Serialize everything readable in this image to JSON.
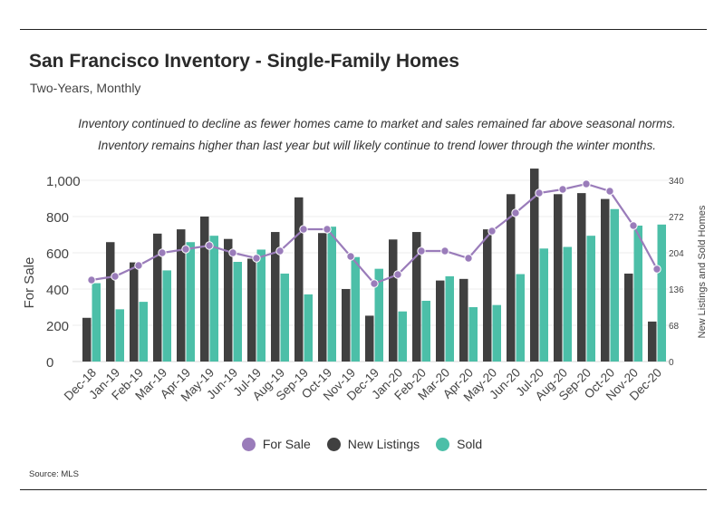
{
  "title": "San Francisco Inventory - Single-Family Homes",
  "subtitle": "Two-Years, Monthly",
  "annotation_line1": "Inventory continued to decline as fewer homes came to market and sales remained far above seasonal norms.",
  "annotation_line2": "Inventory remains higher than last year but will likely continue to trend lower through the winter months.",
  "source": "Source:  MLS",
  "colors": {
    "for_sale": "#9a7cba",
    "new_listings": "#404040",
    "sold": "#4cbfa8"
  },
  "legend": {
    "for_sale": "For Sale",
    "new_listings": "New Listings",
    "sold": "Sold"
  },
  "chart_data": {
    "type": "bar",
    "title": "San Francisco Inventory - Single-Family Homes",
    "categories": [
      "Dec-18",
      "Jan-19",
      "Feb-19",
      "Mar-19",
      "Apr-19",
      "May-19",
      "Jun-19",
      "Jul-19",
      "Aug-19",
      "Sep-19",
      "Oct-19",
      "Nov-19",
      "Dec-19",
      "Jan-20",
      "Feb-20",
      "Mar-20",
      "Apr-20",
      "May-20",
      "Jun-20",
      "Jul-20",
      "Aug-20",
      "Sep-20",
      "Oct-20",
      "Nov-20",
      "Dec-20"
    ],
    "y_left": {
      "label": "For Sale",
      "ticks": [
        0,
        200,
        400,
        600,
        800,
        1000
      ],
      "tick_labels": [
        "0",
        "200",
        "400",
        "600",
        "800",
        "1,000"
      ],
      "range": [
        0,
        1000
      ]
    },
    "y_right": {
      "label": "New Listings and Sold Homes",
      "ticks": [
        0,
        68,
        136,
        204,
        272,
        340
      ],
      "range": [
        0,
        340
      ]
    },
    "series": [
      {
        "name": "For Sale",
        "type": "line",
        "axis": "left",
        "values": [
          450,
          470,
          530,
          600,
          620,
          640,
          600,
          570,
          610,
          730,
          730,
          580,
          430,
          480,
          610,
          610,
          570,
          720,
          820,
          930,
          950,
          980,
          940,
          750,
          510
        ]
      },
      {
        "name": "New Listings",
        "type": "bar",
        "axis": "right",
        "values": [
          82,
          224,
          186,
          240,
          248,
          272,
          230,
          193,
          243,
          308,
          241,
          136,
          86,
          229,
          243,
          152,
          155,
          248,
          314,
          362,
          314,
          316,
          305,
          165,
          75
        ]
      },
      {
        "name": "Sold",
        "type": "bar",
        "axis": "right",
        "values": [
          147,
          98,
          112,
          171,
          224,
          236,
          187,
          210,
          165,
          126,
          253,
          196,
          174,
          94,
          114,
          160,
          102,
          106,
          164,
          212,
          215,
          236,
          286,
          255,
          257
        ]
      }
    ]
  }
}
